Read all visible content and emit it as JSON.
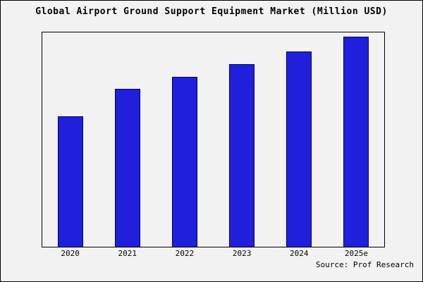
{
  "title": "Global Airport Ground Support Equipment Market (Million USD)",
  "source": "Source: Prof Research",
  "colors": {
    "bar_fill": "#1f1fdc",
    "bar_border": "#000066",
    "background": "#f2f2f2",
    "frame_border": "#000000"
  },
  "chart_data": {
    "type": "bar",
    "categories": [
      "2020",
      "2021",
      "2022",
      "2023",
      "2024",
      "2025e"
    ],
    "values": [
      62,
      75,
      81,
      87,
      93,
      100
    ],
    "title": "Global Airport Ground Support Equipment Market (Million USD)",
    "xlabel": "",
    "ylabel": "",
    "ylim": [
      0,
      102
    ],
    "grid": false,
    "legend": false,
    "source": "Source: Prof Research"
  }
}
